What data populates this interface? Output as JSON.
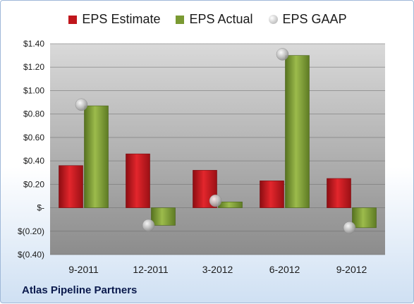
{
  "chart_data": {
    "type": "bar",
    "categories": [
      "9-2011",
      "12-2011",
      "3-2012",
      "6-2012",
      "9-2012"
    ],
    "series": [
      {
        "name": "EPS Estimate",
        "kind": "bar",
        "color": "#c0161c",
        "values": [
          0.36,
          0.46,
          0.32,
          0.23,
          0.25
        ]
      },
      {
        "name": "EPS Actual",
        "kind": "bar",
        "color": "#7a9a32",
        "values": [
          0.87,
          -0.15,
          0.05,
          1.3,
          -0.17
        ]
      },
      {
        "name": "EPS GAAP",
        "kind": "point",
        "color": "#b8b8b8",
        "values": [
          0.88,
          -0.15,
          0.06,
          1.31,
          -0.17
        ]
      }
    ],
    "ylim": [
      -0.4,
      1.4
    ],
    "yticks": [
      {
        "value": 1.4,
        "label": "$1.40"
      },
      {
        "value": 1.2,
        "label": "$1.20"
      },
      {
        "value": 1.0,
        "label": "$1.00"
      },
      {
        "value": 0.8,
        "label": "$0.80"
      },
      {
        "value": 0.6,
        "label": "$0.60"
      },
      {
        "value": 0.4,
        "label": "$0.40"
      },
      {
        "value": 0.2,
        "label": "$0.20"
      },
      {
        "value": 0.0,
        "label": "$-"
      },
      {
        "value": -0.2,
        "label": "$(0.20)"
      },
      {
        "value": -0.4,
        "label": "$(0.40)"
      }
    ],
    "legend_position": "top",
    "grid": true
  },
  "company": "Atlas Pipeline Partners"
}
